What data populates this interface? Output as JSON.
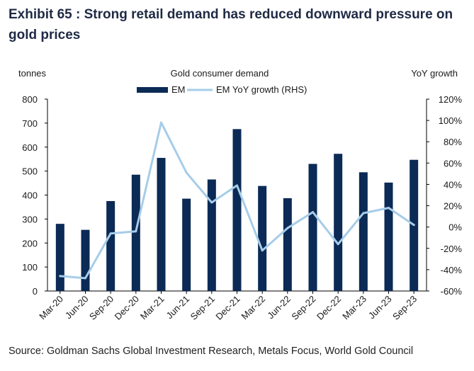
{
  "title": "Exhibit 65 : Strong retail demand has reduced downward pressure on gold prices",
  "source": "Source: Goldman Sachs Global Investment Research, Metals Focus, World Gold Council",
  "chart_data": {
    "type": "bar",
    "title": "Gold consumer demand",
    "ylabel_left": "tonnes",
    "ylabel_right": "YoY growth",
    "categories": [
      "Mar-20",
      "Jun-20",
      "Sep-20",
      "Dec-20",
      "Mar-21",
      "Jun-21",
      "Sep-21",
      "Dec-21",
      "Mar-22",
      "Jun-22",
      "Sep-22",
      "Dec-22",
      "Mar-23",
      "Jun-23",
      "Sep-23"
    ],
    "ylim_left": [
      0,
      800
    ],
    "yticks_left": [
      "0",
      "100",
      "200",
      "300",
      "400",
      "500",
      "600",
      "700",
      "800"
    ],
    "ylim_right": [
      -60,
      120
    ],
    "yticks_right": [
      "-60%",
      "-40%",
      "-20%",
      "0%",
      "20%",
      "40%",
      "60%",
      "80%",
      "100%",
      "120%"
    ],
    "series": [
      {
        "name": "EM",
        "type": "bar",
        "axis": "left",
        "color": "#0b2a55",
        "values": [
          280,
          255,
          375,
          485,
          555,
          385,
          465,
          675,
          438,
          387,
          530,
          572,
          495,
          452,
          547
        ]
      },
      {
        "name": "EM YoY growth (RHS)",
        "type": "line",
        "axis": "right",
        "color": "#a6cde9",
        "values": [
          -46,
          -48,
          -6,
          -4,
          98,
          51,
          23,
          39,
          -22,
          -1,
          14,
          -16,
          13,
          18,
          2
        ]
      }
    ],
    "grid": false,
    "legend_position": "top-center"
  }
}
